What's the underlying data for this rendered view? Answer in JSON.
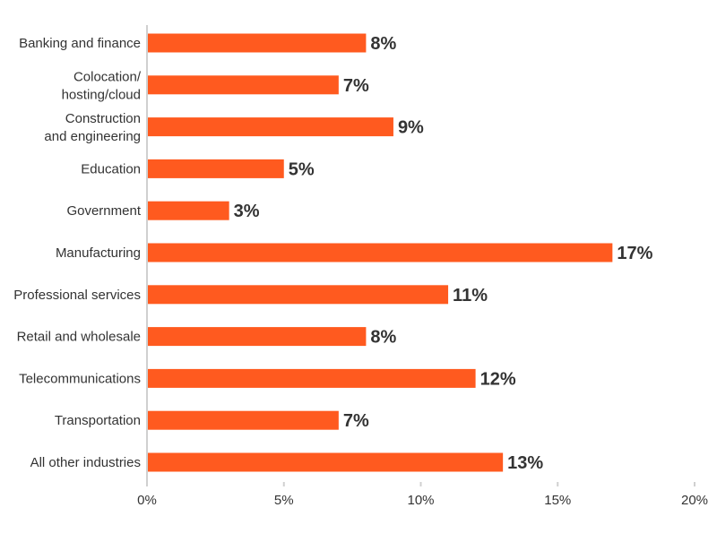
{
  "chart_data": {
    "type": "bar",
    "orientation": "horizontal",
    "categories": [
      [
        "Banking and finance"
      ],
      [
        "Colocation/",
        "hosting/cloud"
      ],
      [
        "Construction",
        "and engineering"
      ],
      [
        "Education"
      ],
      [
        "Government"
      ],
      [
        "Manufacturing"
      ],
      [
        "Professional services"
      ],
      [
        "Retail and wholesale"
      ],
      [
        "Telecommunications"
      ],
      [
        "Transportation"
      ],
      [
        "All other industries"
      ]
    ],
    "values": [
      8,
      7,
      9,
      5,
      3,
      17,
      11,
      8,
      12,
      7,
      13
    ],
    "data_labels": [
      "8%",
      "7%",
      "9%",
      "5%",
      "3%",
      "17%",
      "11%",
      "8%",
      "12%",
      "7%",
      "13%"
    ],
    "xlim": [
      0,
      20
    ],
    "xticks": [
      0,
      5,
      10,
      15,
      20
    ],
    "xtick_labels": [
      "0%",
      "5%",
      "10%",
      "15%",
      "20%"
    ],
    "grid": false,
    "bar_color": "#ff5a1f",
    "title": "",
    "xlabel": "",
    "ylabel": ""
  }
}
